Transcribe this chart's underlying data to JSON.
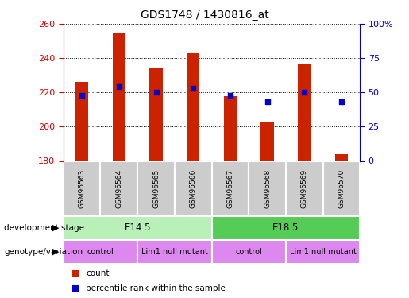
{
  "title": "GDS1748 / 1430816_at",
  "samples": [
    "GSM96563",
    "GSM96564",
    "GSM96565",
    "GSM96566",
    "GSM96567",
    "GSM96568",
    "GSM96569",
    "GSM96570"
  ],
  "counts": [
    226,
    255,
    234,
    243,
    218,
    203,
    237,
    184
  ],
  "percentile_ranks": [
    48,
    54,
    50,
    53,
    48,
    43,
    50,
    43
  ],
  "ylim_left": [
    180,
    260
  ],
  "ylim_right": [
    0,
    100
  ],
  "yticks_left": [
    180,
    200,
    220,
    240,
    260
  ],
  "yticks_right": [
    0,
    25,
    50,
    75,
    100
  ],
  "ytick_labels_right": [
    "0",
    "25",
    "50",
    "75",
    "100%"
  ],
  "bar_color": "#cc2200",
  "dot_color": "#0000cc",
  "bar_bottom": 180,
  "development_stage_label": "development stage",
  "genotype_label": "genotype/variation",
  "dev_stages": [
    {
      "label": "E14.5",
      "start": 0,
      "end": 3,
      "color_light": "#c8f0c8",
      "color_dark": "#55cc55"
    },
    {
      "label": "E18.5",
      "start": 4,
      "end": 7,
      "color_light": "#55cc55",
      "color_dark": "#55cc55"
    }
  ],
  "genotypes": [
    {
      "label": "control",
      "start": 0,
      "end": 1
    },
    {
      "label": "Lim1 null mutant",
      "start": 2,
      "end": 3
    },
    {
      "label": "control",
      "start": 4,
      "end": 5
    },
    {
      "label": "Lim1 null mutant",
      "start": 6,
      "end": 7
    }
  ],
  "legend_count_label": "count",
  "legend_percentile_label": "percentile rank within the sample",
  "axis_color_left": "#cc0000",
  "axis_color_right": "#0000cc",
  "sample_bg_color": "#cccccc",
  "dev_color_light": "#b8f0b8",
  "dev_color_dark": "#55cc55",
  "geno_color": "#dd88ee"
}
